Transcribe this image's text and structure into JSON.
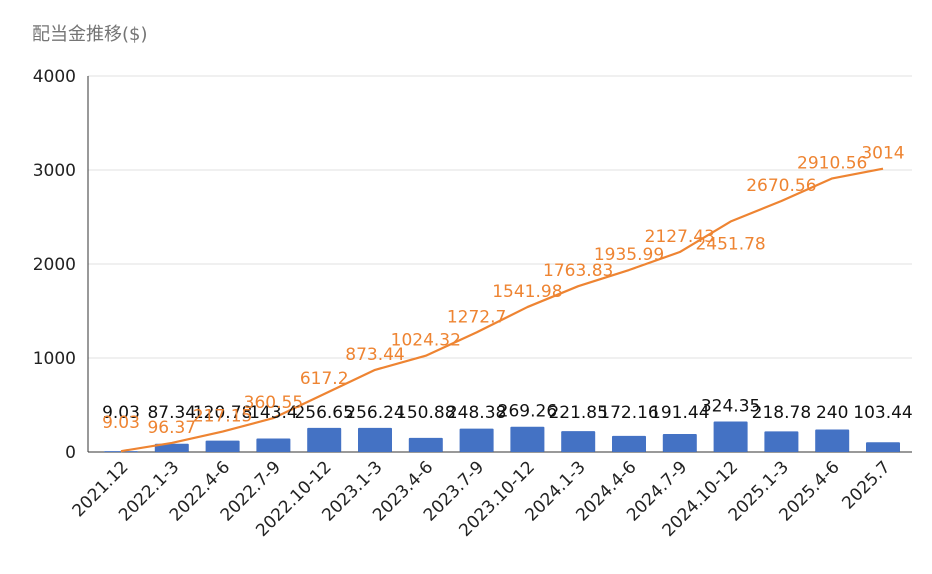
{
  "chart_data": {
    "type": "bar",
    "title": "配当金推移($)",
    "categories": [
      "2021.12",
      "2022.1-3",
      "2022.4-6",
      "2022.7-9",
      "2022.10-12",
      "2023.1-3",
      "2023.4-6",
      "2023.7-9",
      "2023.10-12",
      "2024.1-3",
      "2024.4-6",
      "2024.7-9",
      "2024.10-12",
      "2025.1-3",
      "2025.4-6",
      "2025.7"
    ],
    "series": [
      {
        "kind": "bar",
        "values": [
          9.03,
          87.34,
          120.78,
          143.4,
          256.65,
          256.24,
          150.88,
          248.38,
          269.26,
          221.85,
          172.16,
          191.44,
          324.35,
          218.78,
          240,
          103.44
        ],
        "labels": [
          "9.03",
          "87.34",
          "120.78",
          "143.4",
          "256.65",
          "256.24",
          "150.88",
          "248.38",
          "269.26",
          "221.85",
          "172.16",
          "191.44",
          "324.35",
          "218.78",
          "240",
          "103.44"
        ],
        "color": "#4472c4"
      },
      {
        "kind": "line",
        "values": [
          9.03,
          96.37,
          217.15,
          360.55,
          617.2,
          873.44,
          1024.32,
          1272.7,
          1541.98,
          1763.83,
          1935.99,
          2127.43,
          2451.78,
          2670.56,
          2910.56,
          3014
        ],
        "labels": [
          "9.03",
          "96.37",
          "217.15",
          "360.55",
          "617.2",
          "873.44",
          "1024.32",
          "1272.7",
          "1541.98",
          "1763.83",
          "1935.99",
          "2127.43",
          "2451.78",
          "2670.56",
          "2910.56",
          "3014"
        ],
        "color": "#ee8432"
      }
    ],
    "yticks": [
      "0",
      "1000",
      "2000",
      "3000",
      "4000"
    ],
    "ylim": [
      0,
      4000
    ],
    "grid": true
  }
}
